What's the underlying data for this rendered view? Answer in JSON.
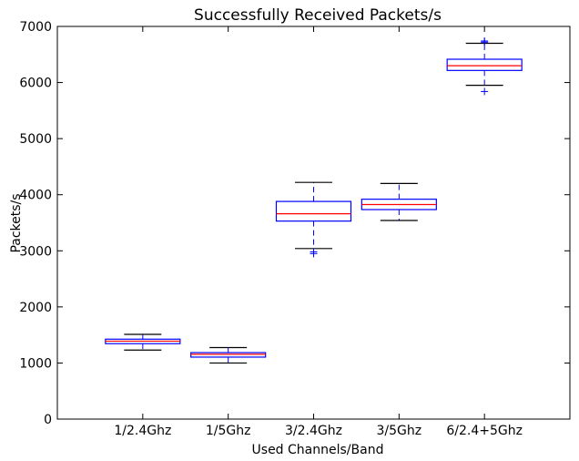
{
  "chart_data": {
    "type": "box",
    "title": "Successfully Received Packets/s",
    "xlabel": "Used Channels/Band",
    "ylabel": "Packets/s",
    "ylim": [
      0,
      7000
    ],
    "yticks": [
      0,
      1000,
      2000,
      3000,
      4000,
      5000,
      6000,
      7000
    ],
    "grid": false,
    "colors": {
      "box": "#0000ff",
      "median": "#ff0000",
      "whisker_cap": "#000000",
      "outlier": "#0000ff"
    },
    "categories": [
      "1/2.4Ghz",
      "1/5Ghz",
      "3/2.4Ghz",
      "3/5Ghz",
      "6/2.4+5Ghz"
    ],
    "boxes": [
      {
        "whisker_low": 1230,
        "q1": 1345,
        "median": 1390,
        "q3": 1425,
        "whisker_high": 1510,
        "outliers": []
      },
      {
        "whisker_low": 1000,
        "q1": 1105,
        "median": 1155,
        "q3": 1185,
        "whisker_high": 1275,
        "outliers": []
      },
      {
        "whisker_low": 3040,
        "q1": 3530,
        "median": 3660,
        "q3": 3880,
        "whisker_high": 4220,
        "outliers": [
          2950,
          2980
        ]
      },
      {
        "whisker_low": 3540,
        "q1": 3735,
        "median": 3825,
        "q3": 3920,
        "whisker_high": 4200,
        "outliers": []
      },
      {
        "whisker_low": 5950,
        "q1": 6215,
        "median": 6300,
        "q3": 6415,
        "whisker_high": 6700,
        "outliers": [
          5840,
          6720,
          6740
        ]
      }
    ]
  }
}
